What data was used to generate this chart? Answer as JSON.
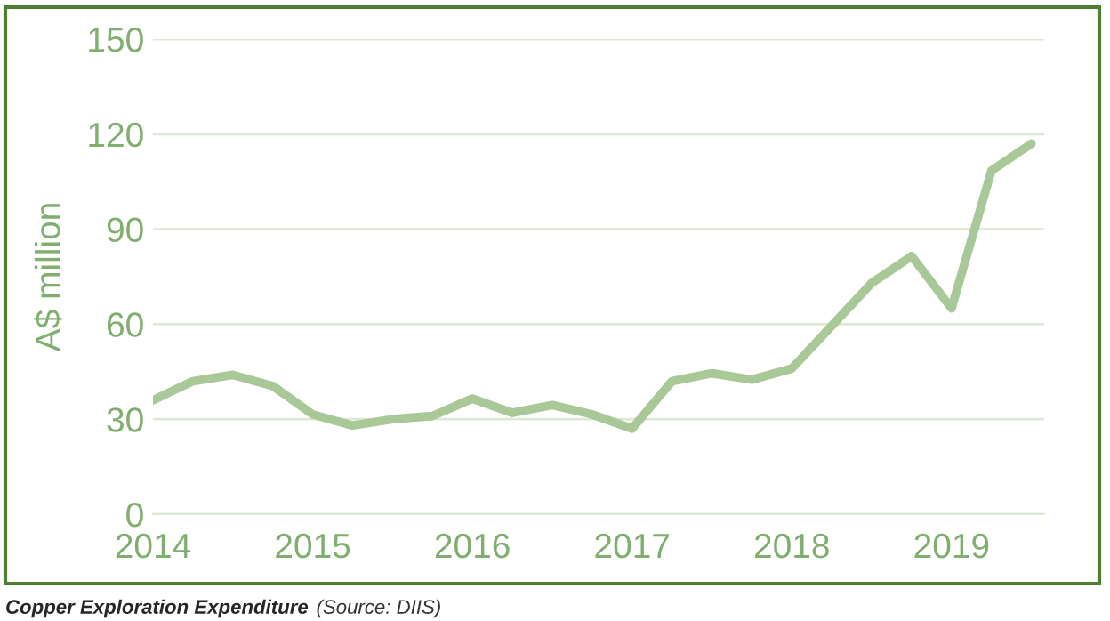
{
  "chart_data": {
    "type": "line",
    "ylabel": "A$ million",
    "annotations": [
      "Copper Exploration Expenditure",
      "(Source: DIIS)"
    ],
    "x": [
      2014,
      2014.25,
      2014.5,
      2014.75,
      2015,
      2015.25,
      2015.5,
      2015.75,
      2016,
      2016.25,
      2016.5,
      2016.75,
      2017,
      2017.25,
      2017.5,
      2017.75,
      2018,
      2018.25,
      2018.5,
      2018.75,
      2019,
      2019.25,
      2019.5
    ],
    "series": [
      {
        "color": "#a8c898",
        "values": [
          36,
          42,
          44,
          40.5,
          31.5,
          28,
          30,
          31,
          36.5,
          32,
          34.5,
          31.5,
          27,
          42,
          44.5,
          42.5,
          46,
          59.5,
          73,
          81.5,
          65,
          108.5,
          117
        ]
      }
    ],
    "xlim": [
      2014,
      2019.58
    ],
    "xticks": [
      2014,
      2015,
      2016,
      2017,
      2018,
      2019
    ],
    "ylim": [
      0,
      150
    ],
    "yticks": [
      0,
      30,
      60,
      90,
      120,
      150
    ],
    "grid": "y",
    "legend": false,
    "marker": "none",
    "line_style": "solid"
  }
}
